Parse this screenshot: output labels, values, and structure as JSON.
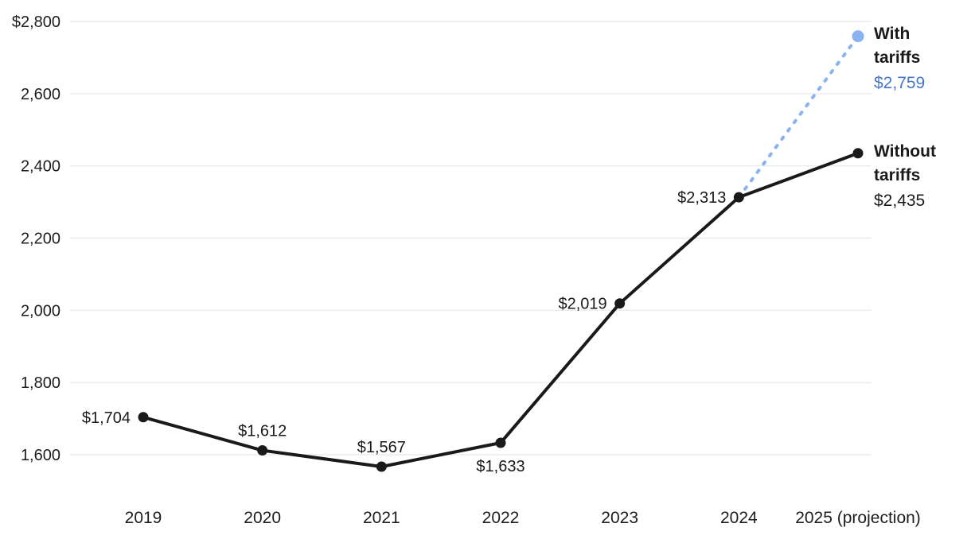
{
  "page": {
    "background": "#ffffff"
  },
  "chart_data": {
    "type": "line",
    "title": "",
    "categories": [
      "2019",
      "2020",
      "2021",
      "2022",
      "2023",
      "2024",
      "2025 (projection)"
    ],
    "series": [
      {
        "name": "Without tariffs",
        "style": "solid",
        "color": "#1a1a1a",
        "values": [
          1704,
          1612,
          1567,
          1633,
          2019,
          2313,
          2435
        ]
      },
      {
        "name": "With tariffs",
        "style": "dashed",
        "color": "#8ab2f0",
        "values": [
          null,
          null,
          null,
          null,
          null,
          2313,
          2759
        ]
      }
    ],
    "point_labels": [
      {
        "index": 0,
        "series": 0,
        "text": "$1,704",
        "position": "left"
      },
      {
        "index": 1,
        "series": 0,
        "text": "$1,612",
        "position": "above"
      },
      {
        "index": 2,
        "series": 0,
        "text": "$1,567",
        "position": "above"
      },
      {
        "index": 3,
        "series": 0,
        "text": "$1,633",
        "position": "below"
      },
      {
        "index": 4,
        "series": 0,
        "text": "$2,019",
        "position": "left"
      },
      {
        "index": 5,
        "series": 0,
        "text": "$2,313",
        "position": "left"
      }
    ],
    "end_labels": {
      "with_tariffs": {
        "line1": "With",
        "line2": "tariffs",
        "value": "$2,759",
        "value_color": "#4577c6"
      },
      "without_tariffs": {
        "line1": "Without",
        "line2": "tariffs",
        "value": "$2,435",
        "value_color": "#1a1a1a"
      }
    },
    "y_axis": {
      "range": [
        1600,
        2800
      ],
      "ticks": [
        {
          "value": 2800,
          "label": "$2,800"
        },
        {
          "value": 2600,
          "label": "2,600"
        },
        {
          "value": 2400,
          "label": "2,400"
        },
        {
          "value": 2200,
          "label": "2,200"
        },
        {
          "value": 2000,
          "label": "2,000"
        },
        {
          "value": 1800,
          "label": "1,800"
        },
        {
          "value": 1600,
          "label": "1,600"
        }
      ]
    },
    "grid": true,
    "legend_position": "right-end-labels",
    "colors": {
      "grid": "#e8e8e8",
      "axis_text": "#1d1d1d",
      "black_series": "#1a1a1a",
      "blue_series": "#8ab2f0",
      "blue_text": "#4577c6"
    }
  }
}
